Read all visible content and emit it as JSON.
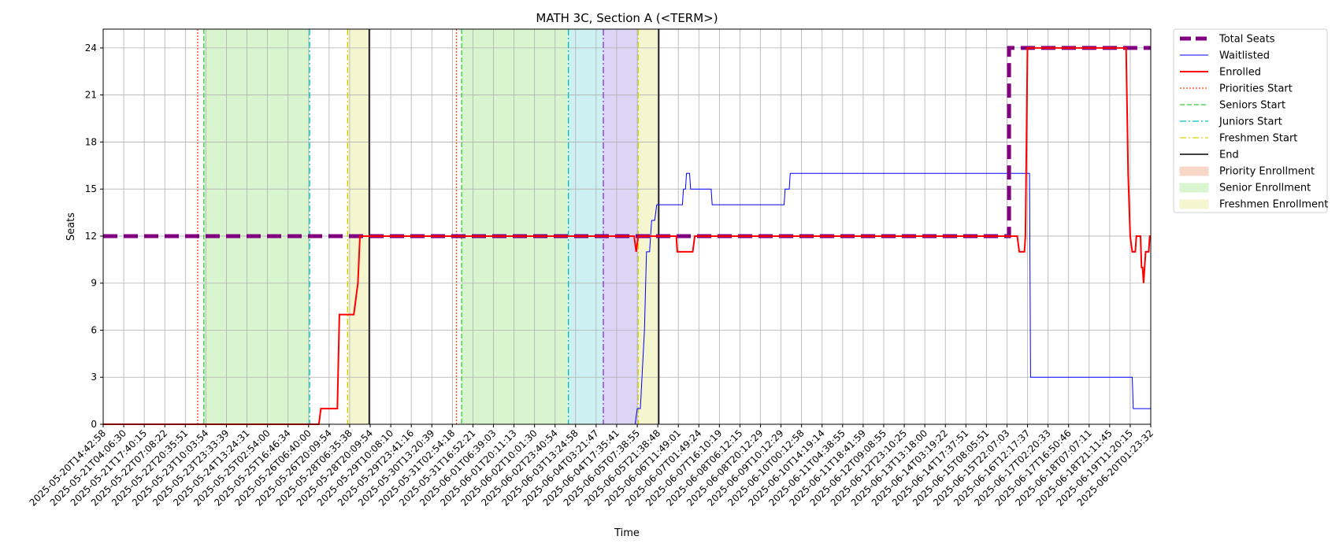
{
  "chart_data": {
    "type": "line",
    "title": "MATH 3C, Section A (<TERM>)",
    "xlabel": "Time",
    "ylabel": "Seats",
    "ylim": [
      0,
      25.2
    ],
    "yticks": [
      0,
      3,
      6,
      9,
      12,
      15,
      18,
      21,
      24
    ],
    "grid": true,
    "legend_position": "outside-right",
    "x_tick_labels": [
      "2025-05-20T14:42:58",
      "2025-05-21T04:06:30",
      "2025-05-21T17:40:15",
      "2025-05-22T07:08:22",
      "2025-05-22T20:35:51",
      "2025-05-23T10:03:54",
      "2025-05-23T23:33:39",
      "2025-05-24T13:24:31",
      "2025-05-25T02:54:00",
      "2025-05-25T16:46:34",
      "2025-05-26T06:40:00",
      "2025-05-26T20:09:54",
      "2025-05-28T06:35:38",
      "2025-05-28T20:09:54",
      "2025-05-29T10:08:10",
      "2025-05-29T23:41:16",
      "2025-05-30T13:20:39",
      "2025-05-31T02:54:18",
      "2025-05-31T16:52:21",
      "2025-06-01T06:39:03",
      "2025-06-01T20:11:13",
      "2025-06-02T10:01:30",
      "2025-06-02T23:40:54",
      "2025-06-03T13:24:58",
      "2025-06-04T03:21:47",
      "2025-06-04T17:35:41",
      "2025-06-05T07:38:55",
      "2025-06-05T21:38:48",
      "2025-06-06T11:49:01",
      "2025-06-07T01:49:24",
      "2025-06-07T16:10:19",
      "2025-06-08T06:12:15",
      "2025-06-08T20:12:29",
      "2025-06-09T10:12:29",
      "2025-06-10T00:12:58",
      "2025-06-10T14:19:14",
      "2025-06-11T04:38:55",
      "2025-06-11T18:41:59",
      "2025-06-12T09:08:55",
      "2025-06-12T23:10:25",
      "2025-06-13T13:18:00",
      "2025-06-14T03:19:22",
      "2025-06-14T17:37:51",
      "2025-06-15T08:05:51",
      "2025-06-15T22:07:03",
      "2025-06-16T12:17:37",
      "2025-06-17T02:20:33",
      "2025-06-17T16:50:46",
      "2025-06-18T07:07:11",
      "2025-06-18T21:11:45",
      "2025-06-19T11:20:15",
      "2025-06-20T01:23:32"
    ],
    "x_max_index": 51,
    "legend": [
      {
        "label": "Total Seats",
        "kind": "line",
        "color": "#800080",
        "dash": "dashed",
        "width": 5
      },
      {
        "label": "Waitlisted",
        "kind": "line",
        "color": "#0000ff",
        "dash": "solid",
        "width": 1
      },
      {
        "label": "Enrolled",
        "kind": "line",
        "color": "#ff0000",
        "dash": "solid",
        "width": 2
      },
      {
        "label": "Priorities Start",
        "kind": "line",
        "color": "#ff4500",
        "dash": "dotted",
        "width": 1.3
      },
      {
        "label": "Seniors Start",
        "kind": "line",
        "color": "#32cd32",
        "dash": "dashed",
        "width": 1.3
      },
      {
        "label": "Juniors Start",
        "kind": "line",
        "color": "#00bfbf",
        "dash": "dashdot",
        "width": 1.3
      },
      {
        "label": "Freshmen Start",
        "kind": "line",
        "color": "#d4d400",
        "dash": "dashdot",
        "width": 1.3
      },
      {
        "label": "End",
        "kind": "line",
        "color": "#000000",
        "dash": "solid",
        "width": 1.5
      },
      {
        "label": "Priority Enrollment",
        "kind": "patch",
        "color": "#f8d8c8"
      },
      {
        "label": "Senior Enrollment",
        "kind": "patch",
        "color": "#d8f5d0"
      },
      {
        "label": "Freshmen Enrollment",
        "kind": "patch",
        "color": "#f5f5d0"
      }
    ],
    "spans": [
      {
        "x0": 4.9,
        "x1": 10.05,
        "color": "#d8f5d0"
      },
      {
        "x0": 11.9,
        "x1": 12.95,
        "color": "#f5f5d0"
      },
      {
        "x0": 17.45,
        "x1": 22.65,
        "color": "#d8f5d0"
      },
      {
        "x0": 22.65,
        "x1": 24.35,
        "color": "#cdf0f2"
      },
      {
        "x0": 24.35,
        "x1": 26.05,
        "color": "#ddd5f5"
      },
      {
        "x0": 26.05,
        "x1": 27.05,
        "color": "#f5f5d0"
      }
    ],
    "vlines": [
      {
        "x": 4.6,
        "color": "#ff4500",
        "dash": "dotted"
      },
      {
        "x": 4.9,
        "color": "#32cd32",
        "dash": "dashed"
      },
      {
        "x": 10.05,
        "color": "#00bfbf",
        "dash": "dashdot"
      },
      {
        "x": 11.9,
        "color": "#d4d400",
        "dash": "dashdot"
      },
      {
        "x": 12.95,
        "color": "#000000",
        "dash": "solid"
      },
      {
        "x": 17.2,
        "color": "#ff4500",
        "dash": "dotted"
      },
      {
        "x": 17.45,
        "color": "#32cd32",
        "dash": "dashed"
      },
      {
        "x": 22.65,
        "color": "#00bfbf",
        "dash": "dashdot"
      },
      {
        "x": 24.35,
        "color": "#8a2be2",
        "dash": "dashdot"
      },
      {
        "x": 26.05,
        "color": "#d4d400",
        "dash": "dashdot"
      },
      {
        "x": 27.05,
        "color": "#000000",
        "dash": "solid"
      }
    ],
    "series": [
      {
        "name": "Total Seats",
        "color": "#800080",
        "dash": "dashed",
        "width": 5,
        "points": [
          [
            0,
            12
          ],
          [
            44.1,
            12
          ],
          [
            44.1,
            24
          ],
          [
            51,
            24
          ]
        ]
      },
      {
        "name": "Waitlisted",
        "color": "#0000ff",
        "dash": "solid",
        "width": 1,
        "points": [
          [
            0,
            0
          ],
          [
            25.9,
            0
          ],
          [
            26.0,
            1
          ],
          [
            26.15,
            1
          ],
          [
            26.35,
            6
          ],
          [
            26.45,
            11
          ],
          [
            26.6,
            11
          ],
          [
            26.7,
            13
          ],
          [
            26.85,
            13
          ],
          [
            26.95,
            14
          ],
          [
            28.2,
            14
          ],
          [
            28.25,
            15
          ],
          [
            28.35,
            15
          ],
          [
            28.4,
            16
          ],
          [
            28.55,
            16
          ],
          [
            28.6,
            15
          ],
          [
            29.6,
            15
          ],
          [
            29.65,
            14
          ],
          [
            33.15,
            14
          ],
          [
            33.2,
            15
          ],
          [
            33.4,
            15
          ],
          [
            33.45,
            16
          ],
          [
            45.1,
            16
          ],
          [
            45.15,
            3
          ],
          [
            50.1,
            3
          ],
          [
            50.15,
            1
          ],
          [
            51,
            1
          ]
        ]
      },
      {
        "name": "Enrolled",
        "color": "#ff0000",
        "dash": "solid",
        "width": 2,
        "points": [
          [
            0,
            0
          ],
          [
            10.5,
            0
          ],
          [
            10.6,
            1
          ],
          [
            11.4,
            1
          ],
          [
            11.5,
            7
          ],
          [
            12.2,
            7
          ],
          [
            12.3,
            8
          ],
          [
            12.4,
            9
          ],
          [
            12.5,
            12
          ],
          [
            25.85,
            12
          ],
          [
            25.95,
            11
          ],
          [
            26.05,
            12
          ],
          [
            27.9,
            12
          ],
          [
            27.95,
            11
          ],
          [
            28.7,
            11
          ],
          [
            28.8,
            12
          ],
          [
            44.5,
            12
          ],
          [
            44.6,
            11
          ],
          [
            44.85,
            11
          ],
          [
            44.9,
            12
          ],
          [
            45.0,
            24
          ],
          [
            49.8,
            24
          ],
          [
            49.9,
            16
          ],
          [
            50.0,
            12
          ],
          [
            50.1,
            11
          ],
          [
            50.25,
            11
          ],
          [
            50.3,
            12
          ],
          [
            50.5,
            12
          ],
          [
            50.55,
            10
          ],
          [
            50.6,
            10
          ],
          [
            50.65,
            9
          ],
          [
            50.75,
            11
          ],
          [
            50.9,
            11
          ],
          [
            50.95,
            12
          ],
          [
            51,
            12
          ]
        ]
      }
    ]
  }
}
